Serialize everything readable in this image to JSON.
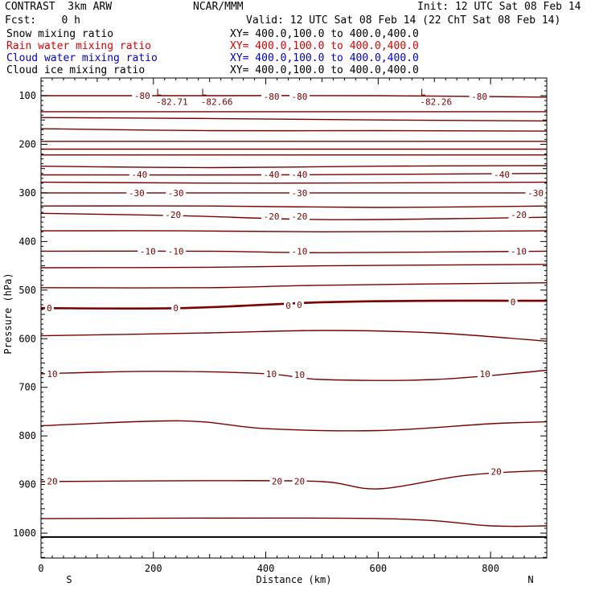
{
  "header": {
    "title": "CONTRAST  3km ARW",
    "center": "NCAR/MMM",
    "init": "Init: 12 UTC Sat 08 Feb 14",
    "fcst": "Fcst:    0 h",
    "valid": "Valid: 12 UTC Sat 08 Feb 14 (22 ChT Sat 08 Feb 14)"
  },
  "fields": [
    {
      "name": "Snow mixing ratio",
      "xy": "XY= 400.0,100.0 to 400.0,400.0",
      "color": "#000000"
    },
    {
      "name": "Rain water mixing ratio",
      "xy": "XY= 400.0,100.0 to 400.0,400.0",
      "color": "#e00000"
    },
    {
      "name": "Cloud water mixing ratio",
      "xy": "XY= 400.0,100.0 to 400.0,400.0",
      "color": "#0000d0"
    },
    {
      "name": "Cloud ice mixing ratio",
      "xy": "XY= 400.0,100.0 to 400.0,400.0",
      "color": "#000000"
    }
  ],
  "chart_data": {
    "type": "contour",
    "xlabel": "Distance (km)",
    "ylabel": "Pressure (hPa)",
    "xlim": [
      0,
      900
    ],
    "ylim": [
      1050,
      50
    ],
    "xticks": [
      0,
      200,
      400,
      600,
      800
    ],
    "yticks": [
      100,
      200,
      300,
      400,
      500,
      600,
      700,
      800,
      900,
      1000
    ],
    "end_labels": {
      "left": "S",
      "right": "N"
    },
    "contour_color": "#7a0000",
    "contours": [
      {
        "level": -80,
        "points": [
          [
            0,
            100
          ],
          [
            300,
            100
          ],
          [
            600,
            100
          ],
          [
            900,
            103
          ]
        ]
      },
      {
        "level": -75,
        "points": [
          [
            0,
            133
          ],
          [
            900,
            133
          ]
        ]
      },
      {
        "level": -70,
        "points": [
          [
            0,
            145
          ],
          [
            300,
            147
          ],
          [
            600,
            150
          ],
          [
            900,
            152
          ]
        ]
      },
      {
        "level": -65,
        "points": [
          [
            0,
            168
          ],
          [
            300,
            172
          ],
          [
            600,
            172
          ],
          [
            900,
            173
          ]
        ]
      },
      {
        "level": -60,
        "points": [
          [
            0,
            194
          ],
          [
            300,
            194
          ],
          [
            600,
            194
          ],
          [
            900,
            194
          ]
        ]
      },
      {
        "level": -55,
        "points": [
          [
            0,
            210
          ],
          [
            400,
            210
          ],
          [
            900,
            210
          ]
        ]
      },
      {
        "level": -50,
        "points": [
          [
            0,
            222
          ],
          [
            450,
            222
          ],
          [
            900,
            222
          ]
        ]
      },
      {
        "level": -45,
        "points": [
          [
            0,
            245
          ],
          [
            300,
            248
          ],
          [
            600,
            245
          ],
          [
            900,
            244
          ]
        ]
      },
      {
        "level": -40,
        "points": [
          [
            0,
            263
          ],
          [
            400,
            263
          ],
          [
            900,
            260
          ]
        ]
      },
      {
        "level": -35,
        "points": [
          [
            0,
            278
          ],
          [
            400,
            280
          ],
          [
            900,
            278
          ]
        ]
      },
      {
        "level": -30,
        "points": [
          [
            0,
            300
          ],
          [
            400,
            300
          ],
          [
            900,
            300
          ]
        ]
      },
      {
        "level": -25,
        "points": [
          [
            0,
            327
          ],
          [
            300,
            327
          ],
          [
            600,
            330
          ],
          [
            900,
            327
          ]
        ]
      },
      {
        "level": -20,
        "points": [
          [
            0,
            342
          ],
          [
            250,
            347
          ],
          [
            500,
            355
          ],
          [
            800,
            352
          ],
          [
            900,
            350
          ]
        ]
      },
      {
        "level": -15,
        "points": [
          [
            0,
            378
          ],
          [
            250,
            378
          ],
          [
            500,
            380
          ],
          [
            900,
            378
          ]
        ]
      },
      {
        "level": -10,
        "points": [
          [
            0,
            420
          ],
          [
            300,
            420
          ],
          [
            500,
            423
          ],
          [
            900,
            420
          ]
        ]
      },
      {
        "level": -5,
        "points": [
          [
            0,
            454
          ],
          [
            300,
            453
          ],
          [
            500,
            450
          ],
          [
            900,
            447
          ]
        ]
      },
      {
        "level": -2,
        "points": [
          [
            0,
            495
          ],
          [
            300,
            495
          ],
          [
            500,
            490
          ],
          [
            900,
            485
          ]
        ]
      },
      {
        "level": 0,
        "points": [
          [
            0,
            537
          ],
          [
            250,
            537
          ],
          [
            500,
            525
          ],
          [
            700,
            522
          ],
          [
            900,
            522
          ]
        ]
      },
      {
        "level": 5,
        "points": [
          [
            0,
            594
          ],
          [
            300,
            588
          ],
          [
            500,
            583
          ],
          [
            700,
            588
          ],
          [
            900,
            605
          ]
        ]
      },
      {
        "level": 10,
        "points": [
          [
            0,
            672
          ],
          [
            200,
            667
          ],
          [
            400,
            672
          ],
          [
            500,
            684
          ],
          [
            700,
            684
          ],
          [
            900,
            665
          ]
        ]
      },
      {
        "level": 15,
        "points": [
          [
            0,
            779
          ],
          [
            250,
            769
          ],
          [
            400,
            785
          ],
          [
            600,
            789
          ],
          [
            800,
            775
          ],
          [
            900,
            771
          ]
        ]
      },
      {
        "level": 20,
        "points": [
          [
            0,
            894
          ],
          [
            300,
            892
          ],
          [
            500,
            894
          ],
          [
            600,
            909
          ],
          [
            750,
            882
          ],
          [
            880,
            872
          ],
          [
            900,
            876
          ]
        ]
      },
      {
        "level": 25,
        "points": [
          [
            0,
            970
          ],
          [
            600,
            970
          ],
          [
            800,
            985
          ],
          [
            900,
            985
          ]
        ]
      }
    ],
    "contour_labels": [
      {
        "text": "-80",
        "x": 180,
        "p": 100
      },
      {
        "text": "-80",
        "x": 410,
        "p": 102
      },
      {
        "text": "-80",
        "x": 460,
        "p": 102
      },
      {
        "text": "-80",
        "x": 780,
        "p": 102
      },
      {
        "text": "-40",
        "x": 175,
        "p": 262
      },
      {
        "text": "-40",
        "x": 410,
        "p": 262
      },
      {
        "text": "-40",
        "x": 460,
        "p": 262
      },
      {
        "text": "-40",
        "x": 820,
        "p": 262
      },
      {
        "text": "-30",
        "x": 170,
        "p": 300
      },
      {
        "text": "-30",
        "x": 240,
        "p": 300
      },
      {
        "text": "-30",
        "x": 460,
        "p": 300
      },
      {
        "text": "-30",
        "x": 880,
        "p": 300
      },
      {
        "text": "-20",
        "x": 235,
        "p": 345
      },
      {
        "text": "-20",
        "x": 410,
        "p": 348
      },
      {
        "text": "-20",
        "x": 460,
        "p": 348
      },
      {
        "text": "-20",
        "x": 850,
        "p": 345
      },
      {
        "text": "-10",
        "x": 190,
        "p": 420
      },
      {
        "text": "-10",
        "x": 240,
        "p": 420
      },
      {
        "text": "-10",
        "x": 460,
        "p": 420
      },
      {
        "text": "-10",
        "x": 850,
        "p": 420
      },
      {
        "text": "0",
        "x": 15,
        "p": 537
      },
      {
        "text": "0",
        "x": 240,
        "p": 537
      },
      {
        "text": "0",
        "x": 440,
        "p": 532
      },
      {
        "text": "0",
        "x": 460,
        "p": 530
      },
      {
        "text": "0",
        "x": 840,
        "p": 524
      },
      {
        "text": "10",
        "x": 20,
        "p": 672
      },
      {
        "text": "10",
        "x": 410,
        "p": 672
      },
      {
        "text": "10",
        "x": 460,
        "p": 674
      },
      {
        "text": "10",
        "x": 790,
        "p": 672
      },
      {
        "text": "20",
        "x": 20,
        "p": 893
      },
      {
        "text": "20",
        "x": 420,
        "p": 893
      },
      {
        "text": "20",
        "x": 460,
        "p": 893
      },
      {
        "text": "20",
        "x": 810,
        "p": 873
      }
    ],
    "low_labels": [
      {
        "mark": "L",
        "value": "-82.71",
        "x": 230,
        "p": 88
      },
      {
        "mark": "L",
        "value": "-82.66",
        "x": 310,
        "p": 88
      },
      {
        "mark": "L",
        "value": "-82.26",
        "x": 700,
        "p": 88
      }
    ]
  }
}
